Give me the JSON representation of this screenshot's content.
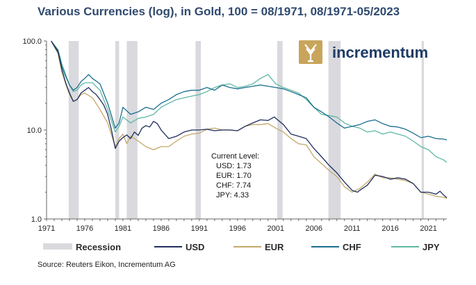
{
  "chart_data": {
    "type": "line",
    "title": "Various Currencies (log), in Gold, 100 = 08/1971, 08/1971-05/2023",
    "y_scale": "log",
    "ylim": [
      1,
      100
    ],
    "yticks": [
      1,
      10,
      100
    ],
    "ytick_labels": [
      "1.0",
      "10.0",
      "100.0"
    ],
    "xlim": [
      1971,
      2023.4
    ],
    "xticks": [
      1971,
      1976,
      1981,
      1986,
      1991,
      1996,
      2001,
      2006,
      2011,
      2016,
      2021
    ],
    "recessions": [
      [
        1973.9,
        1975.2
      ],
      [
        1980.0,
        1980.5
      ],
      [
        1981.5,
        1982.9
      ],
      [
        1990.5,
        1991.2
      ],
      [
        2001.2,
        2001.9
      ],
      [
        2007.9,
        2009.5
      ],
      [
        2020.1,
        2020.4
      ]
    ],
    "series": [
      {
        "name": "USD",
        "color": "#1f2d5c",
        "points": [
          [
            1971.6,
            100
          ],
          [
            1972.5,
            75
          ],
          [
            1973.0,
            48
          ],
          [
            1973.5,
            34
          ],
          [
            1974.0,
            26
          ],
          [
            1974.5,
            21
          ],
          [
            1975.0,
            22
          ],
          [
            1975.5,
            26
          ],
          [
            1976.0,
            28
          ],
          [
            1976.5,
            30
          ],
          [
            1977.0,
            27
          ],
          [
            1977.5,
            25
          ],
          [
            1978.0,
            22
          ],
          [
            1978.5,
            19
          ],
          [
            1979.0,
            15
          ],
          [
            1979.5,
            10
          ],
          [
            1980.0,
            6.2
          ],
          [
            1980.5,
            7.5
          ],
          [
            1981.0,
            8.2
          ],
          [
            1981.5,
            8.8
          ],
          [
            1982.0,
            8.0
          ],
          [
            1982.5,
            9.5
          ],
          [
            1983.0,
            8.7
          ],
          [
            1983.5,
            10.5
          ],
          [
            1984.0,
            11.2
          ],
          [
            1984.5,
            10.8
          ],
          [
            1985.0,
            12.5
          ],
          [
            1985.5,
            11.8
          ],
          [
            1986.0,
            10.0
          ],
          [
            1987.0,
            8.0
          ],
          [
            1988.0,
            8.5
          ],
          [
            1989.0,
            9.5
          ],
          [
            1990.0,
            10.0
          ],
          [
            1991.0,
            10.0
          ],
          [
            1992.0,
            10.2
          ],
          [
            1993.0,
            9.8
          ],
          [
            1994.0,
            10.0
          ],
          [
            1995.0,
            10.0
          ],
          [
            1996.0,
            9.8
          ],
          [
            1997.0,
            11.0
          ],
          [
            1998.0,
            12.0
          ],
          [
            1999.0,
            13.0
          ],
          [
            2000.0,
            12.8
          ],
          [
            2000.8,
            14.0
          ],
          [
            2001.5,
            12.5
          ],
          [
            2002.0,
            11.5
          ],
          [
            2003.0,
            9.0
          ],
          [
            2004.0,
            8.5
          ],
          [
            2005.0,
            8.0
          ],
          [
            2006.0,
            6.2
          ],
          [
            2007.0,
            5.0
          ],
          [
            2008.0,
            4.0
          ],
          [
            2009.0,
            3.3
          ],
          [
            2010.0,
            2.6
          ],
          [
            2011.0,
            2.1
          ],
          [
            2011.7,
            2.0
          ],
          [
            2012.0,
            2.1
          ],
          [
            2013.0,
            2.4
          ],
          [
            2014.0,
            3.1
          ],
          [
            2015.0,
            3.0
          ],
          [
            2016.0,
            2.8
          ],
          [
            2017.0,
            2.9
          ],
          [
            2018.0,
            2.8
          ],
          [
            2019.0,
            2.5
          ],
          [
            2020.0,
            2.0
          ],
          [
            2021.0,
            2.0
          ],
          [
            2022.0,
            1.9
          ],
          [
            2022.5,
            2.05
          ],
          [
            2023.0,
            1.85
          ],
          [
            2023.4,
            1.73
          ]
        ]
      },
      {
        "name": "EUR",
        "color": "#c2a86a",
        "points": [
          [
            1971.6,
            100
          ],
          [
            1972.5,
            72
          ],
          [
            1973.0,
            45
          ],
          [
            1973.5,
            33
          ],
          [
            1974.0,
            25
          ],
          [
            1974.5,
            21
          ],
          [
            1975.0,
            22
          ],
          [
            1975.5,
            25
          ],
          [
            1976.0,
            26
          ],
          [
            1977.0,
            23
          ],
          [
            1978.0,
            17
          ],
          [
            1979.0,
            12
          ],
          [
            1980.0,
            6.5
          ],
          [
            1980.5,
            8.0
          ],
          [
            1981.0,
            9.0
          ],
          [
            1981.5,
            7.0
          ],
          [
            1982.0,
            8.5
          ],
          [
            1983.0,
            7.5
          ],
          [
            1984.0,
            6.5
          ],
          [
            1985.0,
            6.0
          ],
          [
            1986.0,
            6.5
          ],
          [
            1987.0,
            6.5
          ],
          [
            1988.0,
            7.5
          ],
          [
            1989.0,
            8.5
          ],
          [
            1990.0,
            9.0
          ],
          [
            1991.0,
            9.2
          ],
          [
            1992.0,
            10.2
          ],
          [
            1993.0,
            10.5
          ],
          [
            1994.0,
            10.0
          ],
          [
            1995.0,
            10.0
          ],
          [
            1996.0,
            9.8
          ],
          [
            1997.0,
            11.0
          ],
          [
            1998.0,
            11.5
          ],
          [
            1999.0,
            11.5
          ],
          [
            2000.0,
            11.8
          ],
          [
            2001.0,
            10.5
          ],
          [
            2002.0,
            9.5
          ],
          [
            2003.0,
            8.0
          ],
          [
            2004.0,
            7.0
          ],
          [
            2005.0,
            6.8
          ],
          [
            2006.0,
            5.0
          ],
          [
            2007.0,
            4.2
          ],
          [
            2008.0,
            3.5
          ],
          [
            2009.0,
            3.0
          ],
          [
            2010.0,
            2.3
          ],
          [
            2011.0,
            2.0
          ],
          [
            2012.0,
            2.2
          ],
          [
            2013.0,
            2.6
          ],
          [
            2014.0,
            3.2
          ],
          [
            2015.0,
            2.9
          ],
          [
            2016.0,
            2.9
          ],
          [
            2017.0,
            2.8
          ],
          [
            2018.0,
            2.7
          ],
          [
            2019.0,
            2.5
          ],
          [
            2020.0,
            2.0
          ],
          [
            2021.0,
            1.9
          ],
          [
            2022.0,
            1.8
          ],
          [
            2023.0,
            1.75
          ],
          [
            2023.4,
            1.7
          ]
        ]
      },
      {
        "name": "CHF",
        "color": "#1a6e8e",
        "points": [
          [
            1971.6,
            100
          ],
          [
            1972.5,
            78
          ],
          [
            1973.0,
            52
          ],
          [
            1973.5,
            40
          ],
          [
            1974.0,
            32
          ],
          [
            1974.5,
            28
          ],
          [
            1975.0,
            30
          ],
          [
            1975.5,
            35
          ],
          [
            1976.0,
            38
          ],
          [
            1976.5,
            42
          ],
          [
            1977.0,
            38
          ],
          [
            1978.0,
            33
          ],
          [
            1979.0,
            20
          ],
          [
            1980.0,
            10.5
          ],
          [
            1980.5,
            12.0
          ],
          [
            1981.0,
            18
          ],
          [
            1982.0,
            15
          ],
          [
            1983.0,
            16
          ],
          [
            1984.0,
            18
          ],
          [
            1985.0,
            17
          ],
          [
            1986.0,
            20
          ],
          [
            1987.0,
            22
          ],
          [
            1988.0,
            25
          ],
          [
            1989.0,
            27
          ],
          [
            1990.0,
            28
          ],
          [
            1991.0,
            28
          ],
          [
            1992.0,
            30
          ],
          [
            1993.0,
            28
          ],
          [
            1994.0,
            32
          ],
          [
            1995.0,
            30
          ],
          [
            1996.0,
            29
          ],
          [
            1997.0,
            30
          ],
          [
            1998.0,
            31
          ],
          [
            1999.0,
            32
          ],
          [
            2000.0,
            31
          ],
          [
            2001.0,
            30
          ],
          [
            2002.0,
            29
          ],
          [
            2003.0,
            27
          ],
          [
            2004.0,
            25
          ],
          [
            2005.0,
            23
          ],
          [
            2006.0,
            18
          ],
          [
            2007.0,
            16
          ],
          [
            2008.0,
            14
          ],
          [
            2009.0,
            12
          ],
          [
            2010.0,
            10.5
          ],
          [
            2011.0,
            11.0
          ],
          [
            2012.0,
            11.5
          ],
          [
            2013.0,
            12.5
          ],
          [
            2014.0,
            13.0
          ],
          [
            2015.0,
            11.8
          ],
          [
            2016.0,
            11.0
          ],
          [
            2017.0,
            10.8
          ],
          [
            2018.0,
            10.2
          ],
          [
            2019.0,
            9.2
          ],
          [
            2020.0,
            8.2
          ],
          [
            2021.0,
            8.5
          ],
          [
            2022.0,
            8.0
          ],
          [
            2023.0,
            7.9
          ],
          [
            2023.4,
            7.74
          ]
        ]
      },
      {
        "name": "JPY",
        "color": "#5fb8a4",
        "points": [
          [
            1971.6,
            100
          ],
          [
            1972.5,
            80
          ],
          [
            1973.0,
            55
          ],
          [
            1973.5,
            42
          ],
          [
            1974.0,
            32
          ],
          [
            1974.5,
            27
          ],
          [
            1975.0,
            28
          ],
          [
            1975.5,
            32
          ],
          [
            1976.0,
            34
          ],
          [
            1977.0,
            34
          ],
          [
            1978.0,
            28
          ],
          [
            1979.0,
            17
          ],
          [
            1980.0,
            9.5
          ],
          [
            1980.5,
            11.0
          ],
          [
            1981.0,
            14.0
          ],
          [
            1982.0,
            12.0
          ],
          [
            1983.0,
            13.5
          ],
          [
            1984.0,
            14.0
          ],
          [
            1985.0,
            15.0
          ],
          [
            1986.0,
            18
          ],
          [
            1987.0,
            20
          ],
          [
            1988.0,
            22
          ],
          [
            1989.0,
            23
          ],
          [
            1990.0,
            24
          ],
          [
            1991.0,
            25
          ],
          [
            1992.0,
            27
          ],
          [
            1993.0,
            30
          ],
          [
            1994.0,
            32
          ],
          [
            1995.0,
            33
          ],
          [
            1996.0,
            30
          ],
          [
            1997.0,
            31
          ],
          [
            1998.0,
            33
          ],
          [
            1999.0,
            38
          ],
          [
            2000.0,
            42
          ],
          [
            2001.0,
            33
          ],
          [
            2002.0,
            30
          ],
          [
            2003.0,
            28
          ],
          [
            2004.0,
            26
          ],
          [
            2005.0,
            22
          ],
          [
            2006.0,
            18
          ],
          [
            2007.0,
            15
          ],
          [
            2008.0,
            14.5
          ],
          [
            2009.0,
            14.0
          ],
          [
            2010.0,
            12.0
          ],
          [
            2011.0,
            11.0
          ],
          [
            2012.0,
            10.5
          ],
          [
            2013.0,
            9.5
          ],
          [
            2014.0,
            9.8
          ],
          [
            2015.0,
            9.0
          ],
          [
            2016.0,
            9.5
          ],
          [
            2017.0,
            9.0
          ],
          [
            2018.0,
            8.5
          ],
          [
            2019.0,
            7.5
          ],
          [
            2020.0,
            6.5
          ],
          [
            2021.0,
            6.0
          ],
          [
            2022.0,
            5.0
          ],
          [
            2023.0,
            4.6
          ],
          [
            2023.4,
            4.33
          ]
        ]
      }
    ],
    "annotation": {
      "header": "Current Level:",
      "lines": [
        "USD: 1.73",
        "EUR: 1.70",
        "CHF: 7.74",
        "JPY: 4.33"
      ]
    },
    "legend": {
      "recession_label": "Recession",
      "position": "bottom"
    }
  },
  "logo": {
    "text": "incrementum",
    "color": "#c8a55a",
    "text_color": "#1d3b66"
  },
  "source": "Source: Reuters Eikon, Incrementum AG",
  "colors": {
    "recession": "#d9d9de",
    "axis": "#666666",
    "title": "#2f4a6e"
  }
}
